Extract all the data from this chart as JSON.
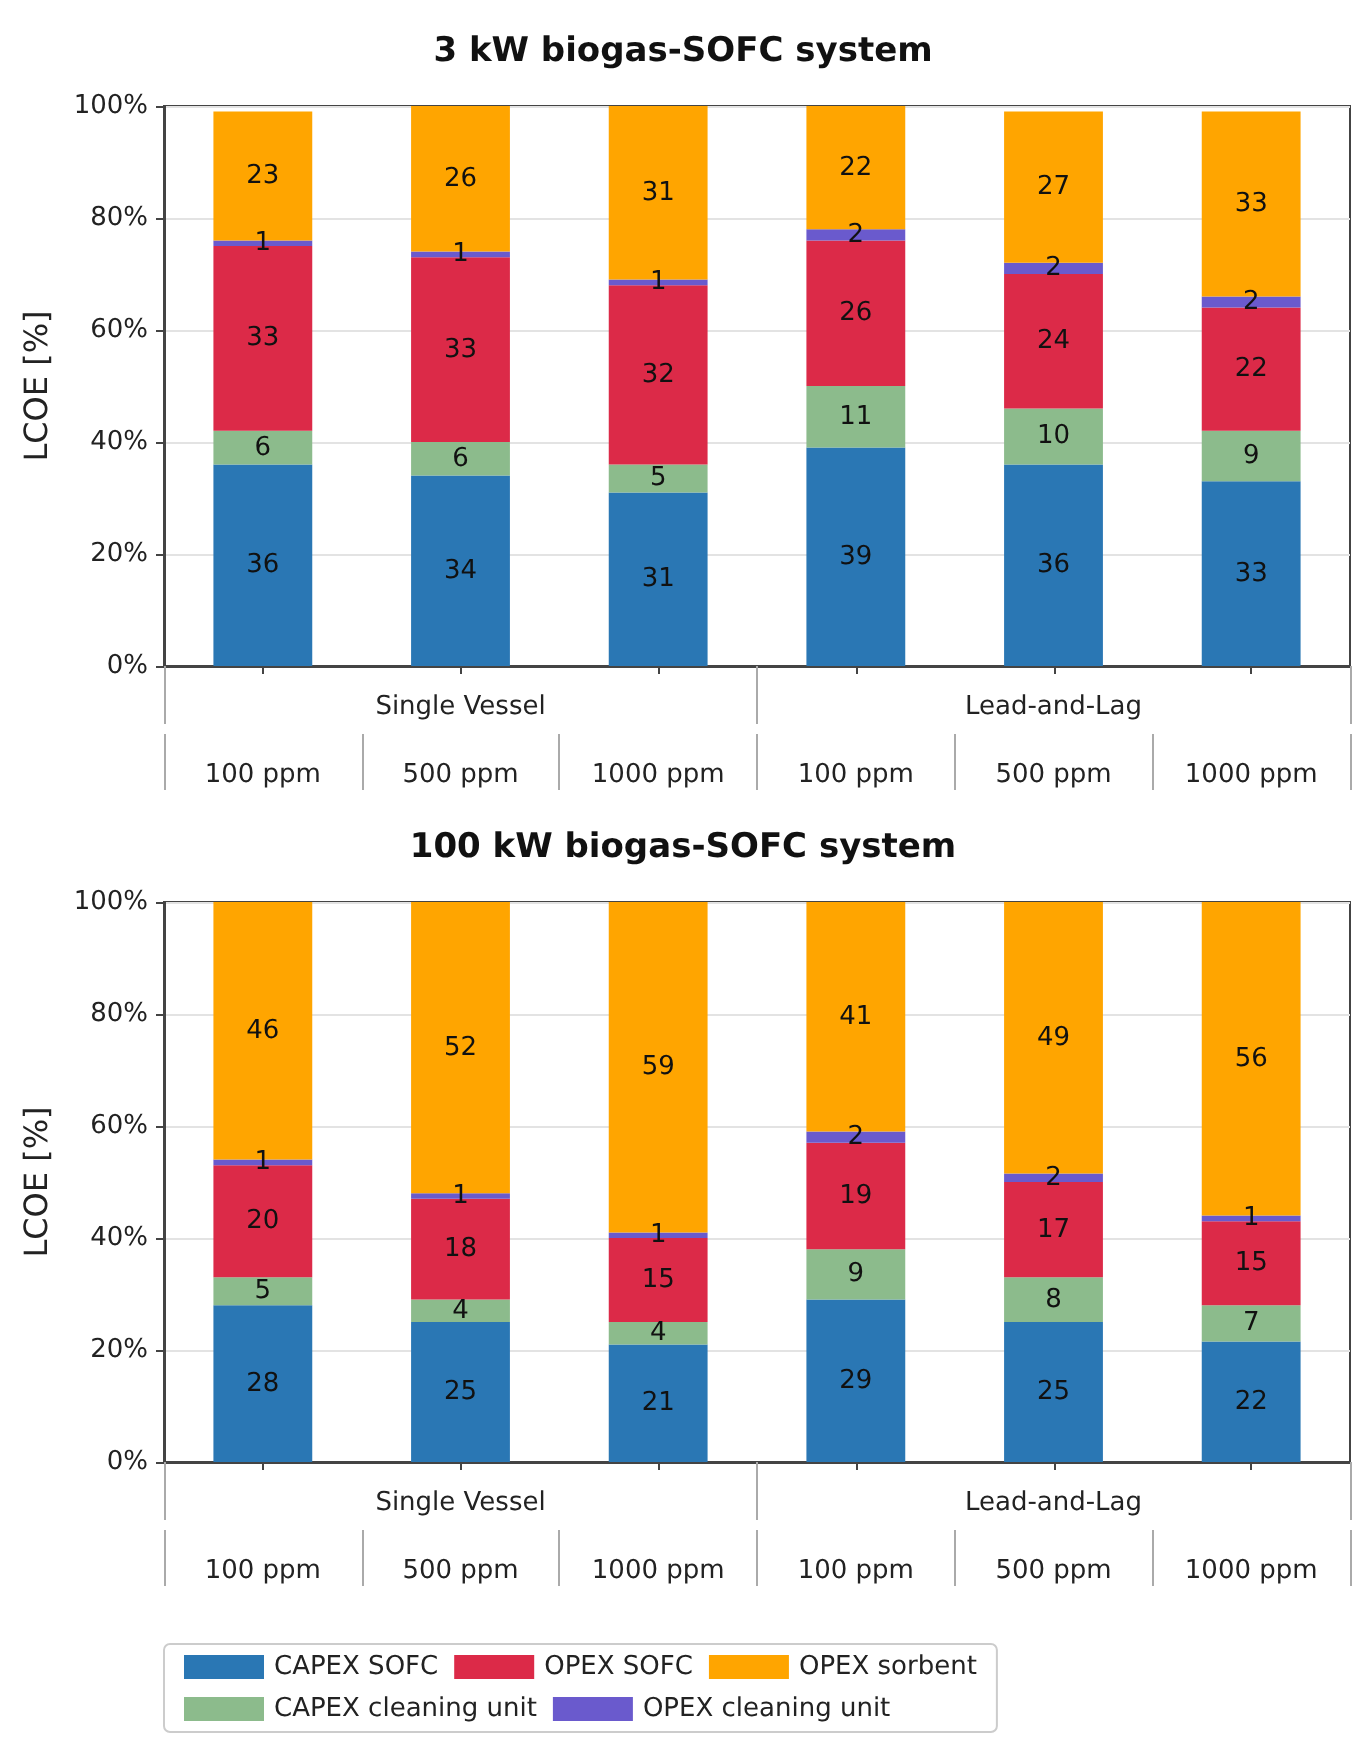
{
  "chart_data": [
    {
      "type": "bar",
      "title": "3 kW biogas-SOFC system",
      "ylabel": "LCOE [%]",
      "stacked": true,
      "data_labels": true,
      "grid": "y",
      "legend": false,
      "categories": [
        "100 ppm",
        "500 ppm",
        "1000 ppm",
        "100 ppm",
        "500 ppm",
        "1000 ppm"
      ],
      "annotations": [
        "Single Vessel",
        "Lead-and-Lag"
      ],
      "ylim": [
        0,
        100
      ],
      "yticks": [
        {
          "value": 0,
          "label": "0%"
        },
        {
          "value": 20,
          "label": "20%"
        },
        {
          "value": 40,
          "label": "40%"
        },
        {
          "value": 60,
          "label": "60%"
        },
        {
          "value": 80,
          "label": "80%"
        },
        {
          "value": 100,
          "label": "100%"
        }
      ],
      "series": [
        {
          "color": "#2a77b4",
          "values": [
            36,
            34,
            31,
            39,
            36,
            33
          ]
        },
        {
          "color": "#8cbb8c",
          "values": [
            6,
            6,
            5,
            11,
            10,
            9
          ]
        },
        {
          "color": "#dc2a48",
          "values": [
            33,
            33,
            32,
            26,
            24,
            22
          ]
        },
        {
          "color": "#6a5acd",
          "values": [
            1,
            1,
            1,
            2,
            2,
            2
          ]
        },
        {
          "color": "#ffa500",
          "values": [
            23,
            26,
            31,
            22,
            27,
            33
          ]
        }
      ]
    },
    {
      "type": "bar",
      "title": "100 kW biogas-SOFC system",
      "ylabel": "LCOE [%]",
      "stacked": true,
      "grid": "y",
      "legend": "bottom",
      "categories": [
        "100 ppm",
        "500 ppm",
        "1000 ppm",
        "100 ppm",
        "500 ppm",
        "1000 ppm"
      ],
      "annotations": [
        "Single Vessel",
        "Lead-and-Lag"
      ],
      "ylim": [
        0,
        100
      ],
      "yticks": [
        {
          "value": 0,
          "label": "0%"
        },
        {
          "value": 20,
          "label": "20%"
        },
        {
          "value": 40,
          "label": "40%"
        },
        {
          "value": 60,
          "label": "60%"
        },
        {
          "value": 80,
          "label": "80%"
        },
        {
          "value": 100,
          "label": "100%"
        }
      ],
      "series": [
        {
          "name": "CAPEX SOFC",
          "color": "#2a77b4",
          "values": [
            28,
            25,
            21,
            29,
            25,
            21.5
          ],
          "value_labels": [
            "28",
            "25",
            "21",
            "29",
            "25",
            "22"
          ]
        },
        {
          "name": "CAPEX cleaning unit",
          "color": "#8cbb8c",
          "values": [
            5,
            4,
            4,
            9,
            8,
            6.5
          ],
          "value_labels": [
            "5",
            "4",
            "4",
            "9",
            "8",
            "7"
          ]
        },
        {
          "name": "OPEX SOFC",
          "color": "#dc2a48",
          "values": [
            20,
            18,
            15,
            19,
            17,
            15
          ],
          "value_labels": [
            "20",
            "18",
            "15",
            "19",
            "17",
            "15"
          ]
        },
        {
          "name": "OPEX cleaning unit",
          "color": "#6a5acd",
          "values": [
            1,
            1,
            1,
            2,
            1.5,
            1
          ],
          "value_labels": [
            "1",
            "1",
            "1",
            "2",
            "2",
            "1"
          ]
        },
        {
          "name": "OPEX sorbent",
          "color": "#ffa500",
          "values": [
            46,
            52,
            59,
            41,
            48.5,
            56
          ],
          "value_labels": [
            "46",
            "52",
            "59",
            "41",
            "49",
            "56"
          ]
        }
      ]
    }
  ]
}
